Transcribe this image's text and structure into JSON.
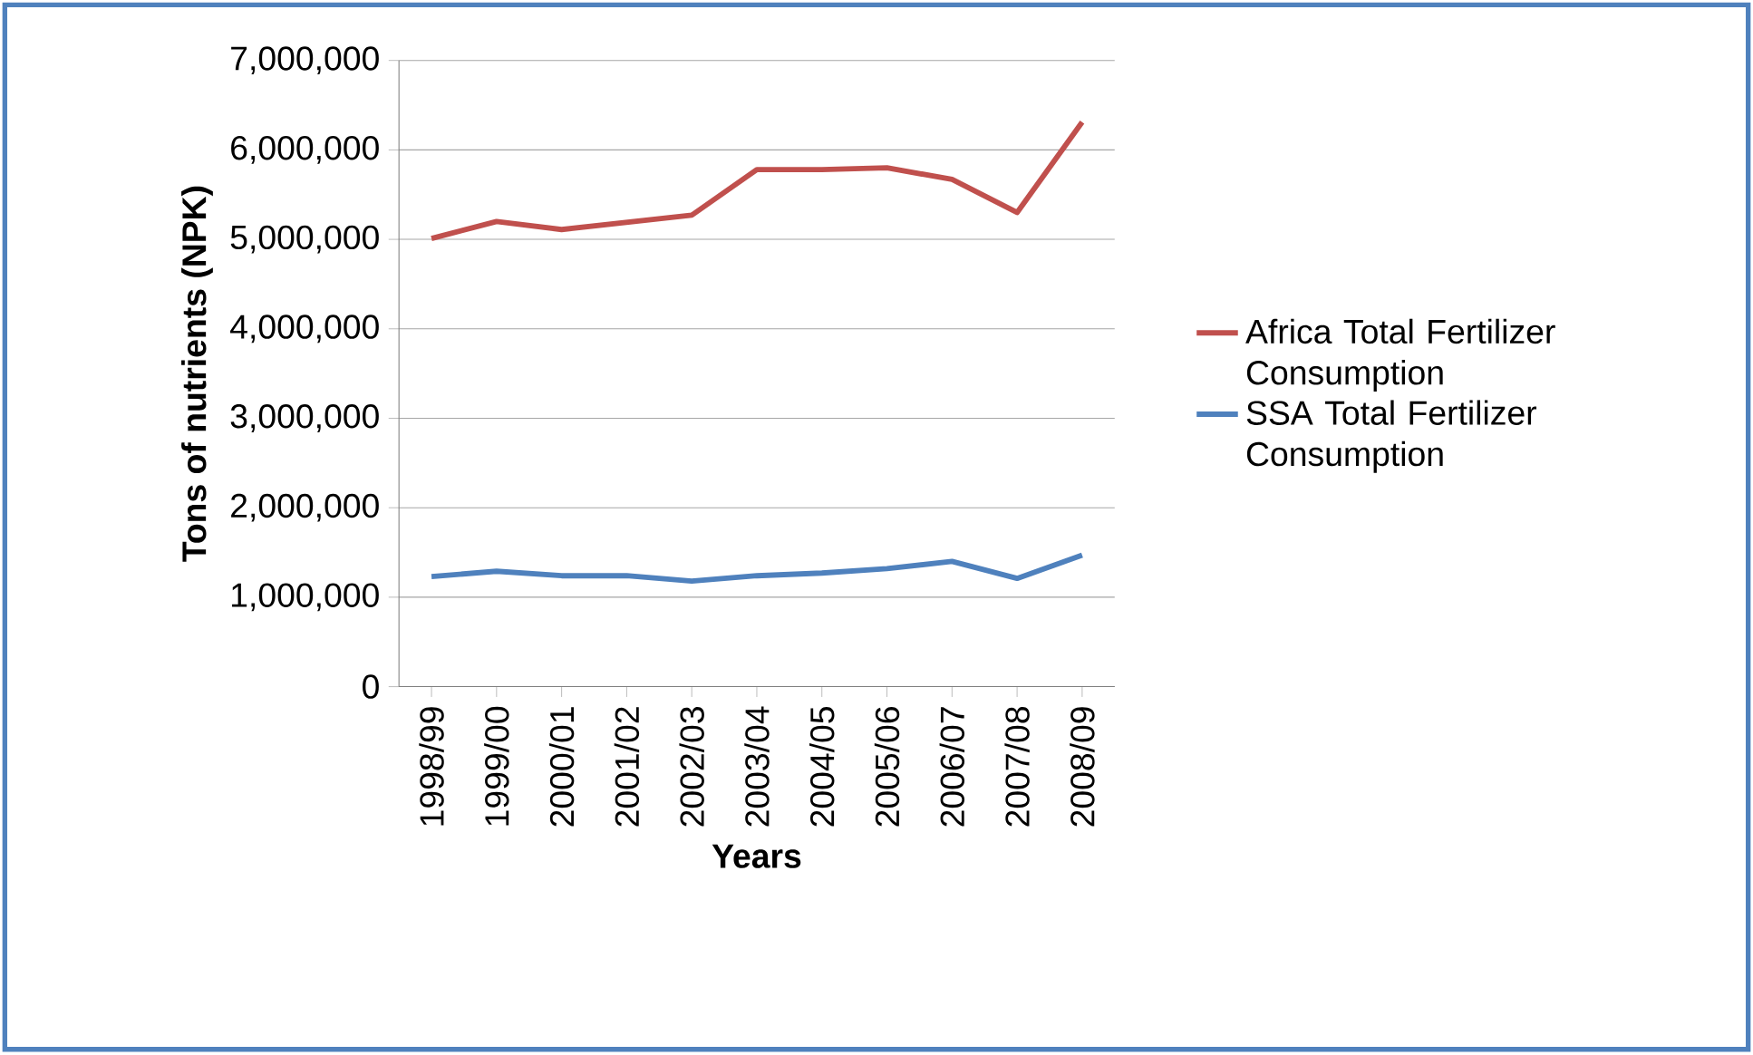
{
  "chart_data": {
    "type": "line",
    "xlabel": "Years",
    "ylabel": "Tons of nutrients  (NPK)",
    "categories": [
      "1998/99",
      "1999/00",
      "2000/01",
      "2001/02",
      "2002/03",
      "2003/04",
      "2004/05",
      "2005/06",
      "2006/07",
      "2007/08",
      "2008/09"
    ],
    "series": [
      {
        "name": "Africa Total Fertilizer Consumption",
        "color": "#c0504d",
        "values": [
          5010000,
          5200000,
          5110000,
          5190000,
          5270000,
          5780000,
          5780000,
          5800000,
          5670000,
          5300000,
          6310000
        ]
      },
      {
        "name": "SSA Total Fertilizer Consumption",
        "color": "#4f81bd",
        "values": [
          1230000,
          1290000,
          1240000,
          1240000,
          1180000,
          1240000,
          1270000,
          1320000,
          1400000,
          1210000,
          1470000
        ]
      }
    ],
    "ylim": [
      0,
      7000000
    ],
    "yticks": [
      {
        "value": 0,
        "label": "0"
      },
      {
        "value": 1000000,
        "label": "1,000,000"
      },
      {
        "value": 2000000,
        "label": "2,000,000"
      },
      {
        "value": 3000000,
        "label": "3,000,000"
      },
      {
        "value": 4000000,
        "label": "4,000,000"
      },
      {
        "value": 5000000,
        "label": "5,000,000"
      },
      {
        "value": 6000000,
        "label": "6,000,000"
      },
      {
        "value": 7000000,
        "label": "7,000,000"
      }
    ],
    "grid": "y",
    "legend": "right",
    "marker": "none",
    "line_style": "solid"
  }
}
